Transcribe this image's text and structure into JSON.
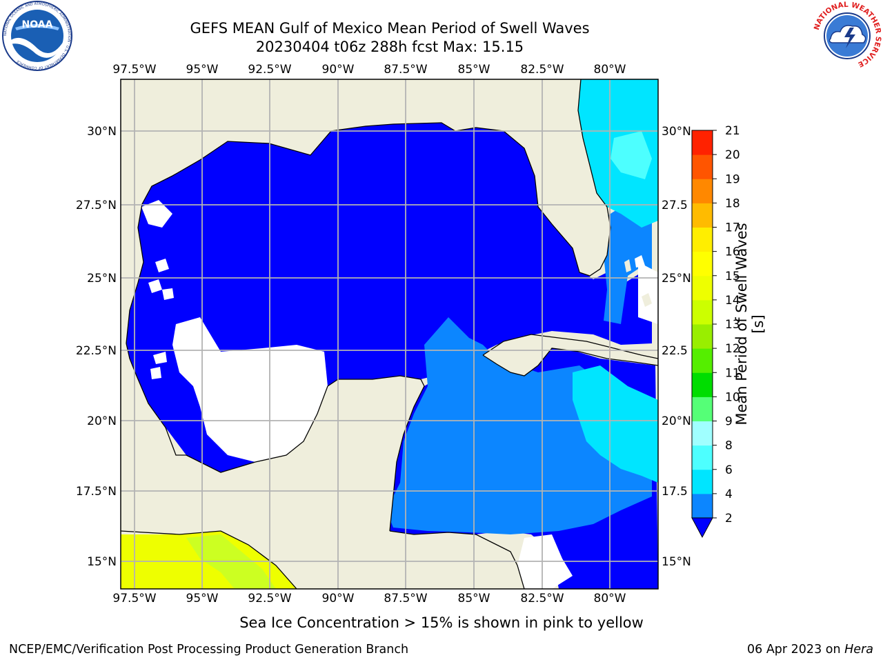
{
  "title": {
    "line1": "GEFS MEAN Gulf of Mexico Mean Period of Swell Waves",
    "line2": "20230404 t06z 288h fcst   Max: 15.15"
  },
  "axes": {
    "lon_labels": [
      "97.5°W",
      "95°W",
      "92.5°W",
      "90°W",
      "87.5°W",
      "85°W",
      "82.5°W",
      "80°W"
    ],
    "lat_labels_left": [
      "30°N",
      "27.5°N",
      "25°N",
      "22.5°N",
      "20°N",
      "17.5°N",
      "15°N"
    ],
    "lat_labels_right": [
      "30°N",
      "27.5",
      "25°N",
      "22.5",
      "20°N",
      "17.5",
      "15°N"
    ]
  },
  "colorbar": {
    "label": "Mean Period of Swell Waves [s]",
    "ticks": [
      "2",
      "4",
      "6",
      "8",
      "9",
      "10",
      "11",
      "12",
      "13",
      "14",
      "15",
      "16",
      "17",
      "18",
      "19",
      "20",
      "21"
    ],
    "colors": [
      "#0c86ff",
      "#00e5ff",
      "#4dffff",
      "#a0ffff",
      "#55ff77",
      "#00dd00",
      "#55ee00",
      "#99ee00",
      "#ccff00",
      "#eeff00",
      "#ffff00",
      "#ffee00",
      "#ffbb00",
      "#ff8800",
      "#ff5500",
      "#ff2200"
    ],
    "under_color": "#0000ff"
  },
  "caption": "Sea Ice Concentration > 15% is shown in pink to yellow",
  "footer": {
    "left": "NCEP/EMC/Verification Post Processing Product Generation Branch",
    "right_date": "06 Apr 2023 on ",
    "right_host": "Hera"
  },
  "logos": {
    "noaa_text": "NOAA",
    "noaa_ring": "NATIONAL OCEANIC AND ATMOSPHERIC ADMINISTRATION · U.S. DEPARTMENT OF COMMERCE",
    "nws_ring": "NATIONAL WEATHER SERVICE"
  },
  "colors": {
    "land": "#efeedc",
    "ocean_low": "#0000ff",
    "ocean_mid": "#0c86ff",
    "ocean_high": "#00e5ff",
    "ocean_cyan": "#4dffff",
    "grid": "#b3b3b3"
  }
}
